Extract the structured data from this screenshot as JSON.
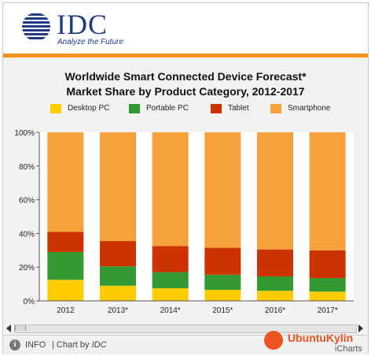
{
  "header": {
    "logo_text": "IDC",
    "tagline": "Analyze the Future"
  },
  "chart_data": {
    "type": "bar",
    "stacked": true,
    "title": "Worldwide Smart Connected Device Forecast*",
    "subtitle": "Market Share by Product Category, 2012-2017",
    "categories": [
      "2012",
      "2013*",
      "2014*",
      "2015*",
      "2016*",
      "2017*"
    ],
    "series": [
      {
        "name": "Desktop PC",
        "color": "#ffcc00",
        "values": [
          12.5,
          9,
          7.5,
          6.5,
          6,
          5.5
        ]
      },
      {
        "name": "Portable PC",
        "color": "#339933",
        "values": [
          16.5,
          11.5,
          9.5,
          9,
          8.5,
          8
        ]
      },
      {
        "name": "Tablet",
        "color": "#cc3300",
        "values": [
          12,
          15,
          15.5,
          16,
          16,
          16.5
        ]
      },
      {
        "name": "Smartphone",
        "color": "#f7a13b",
        "values": [
          59,
          64.5,
          67.5,
          68.5,
          69.5,
          70
        ]
      }
    ],
    "y_ticks": [
      "0%",
      "20%",
      "40%",
      "60%",
      "80%",
      "100%"
    ],
    "ylim": [
      0,
      100
    ],
    "grid": false,
    "legend_position": "top"
  },
  "footer": {
    "info_label": "INFO",
    "chart_by_prefix": "| Chart by",
    "chart_by_brand": "IDC",
    "watermark": "UbuntuKylin",
    "icharts": "iCharts"
  },
  "colors": {
    "accent_orange": "#f7941d",
    "idc_blue": "#1f3b86"
  }
}
